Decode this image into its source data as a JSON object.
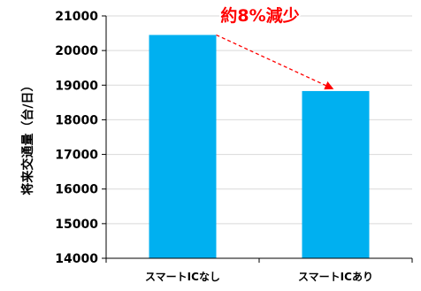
{
  "chart_data": {
    "type": "bar",
    "title": "",
    "xlabel": "",
    "ylabel": "将来交通量（台/日）",
    "categories": [
      "スマートICなし",
      "スマートICあり"
    ],
    "values": [
      20450,
      18830
    ],
    "ylim": [
      14000,
      21000
    ],
    "yticks": [
      14000,
      15000,
      16000,
      17000,
      18000,
      19000,
      20000,
      21000
    ],
    "grid": true,
    "legend": "none",
    "bar_color": "#00b0f0",
    "grid_color": "#d9d9d9",
    "annotation": {
      "text": "約8%減少",
      "color": "#ff0000",
      "from_category": 0,
      "to_category": 1
    }
  }
}
